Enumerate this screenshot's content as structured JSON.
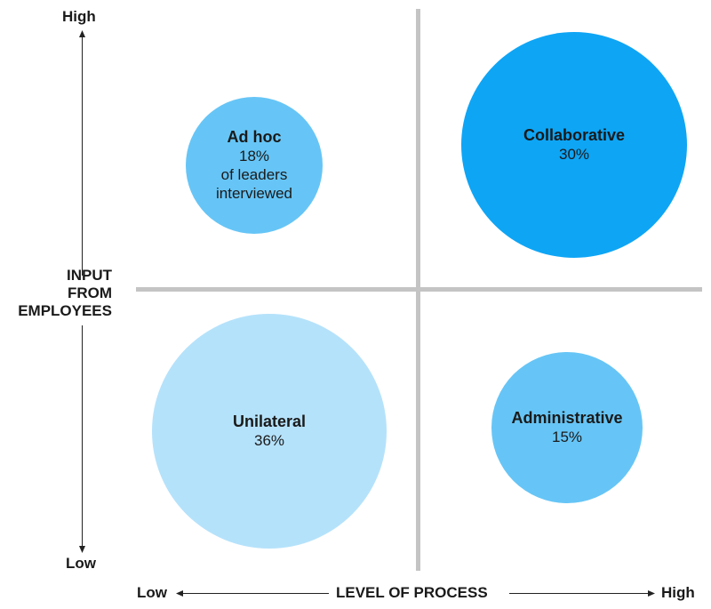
{
  "y_axis": {
    "title_lines": [
      "INPUT",
      "FROM",
      "EMPLOYEES"
    ],
    "high_label": "High",
    "low_label": "Low"
  },
  "x_axis": {
    "title": "LEVEL OF PROCESS",
    "low_label": "Low",
    "high_label": "High"
  },
  "quadrants": {
    "ad_hoc": {
      "name": "Ad hoc",
      "percent": "18%",
      "note_lines": [
        "of leaders",
        "interviewed"
      ],
      "color": "#66c5f6"
    },
    "collaborative": {
      "name": "Collaborative",
      "percent": "30%",
      "color": "#0ea5f5"
    },
    "unilateral": {
      "name": "Unilateral",
      "percent": "36%",
      "color": "#b5e2fb"
    },
    "administrative": {
      "name": "Administrative",
      "percent": "15%",
      "color": "#66c5f6"
    }
  },
  "gridline_color": "#c4c4c4"
}
